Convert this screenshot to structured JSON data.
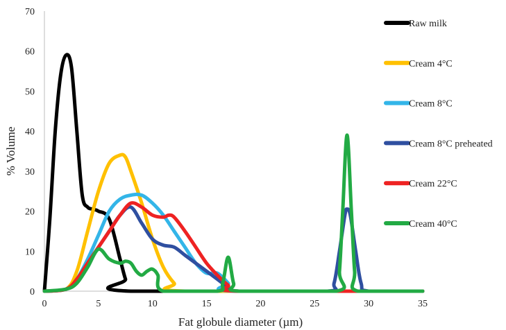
{
  "chart_data": {
    "type": "line",
    "title": "",
    "xlabel": "Fat globule diameter (µm)",
    "ylabel": "% Volume",
    "xlim": [
      0,
      35
    ],
    "ylim": [
      0,
      70
    ],
    "xticks": [
      0,
      5,
      10,
      15,
      20,
      25,
      30,
      35
    ],
    "yticks": [
      0,
      10,
      20,
      30,
      40,
      50,
      60,
      70
    ],
    "grid": false,
    "legend_position": "right",
    "series": [
      {
        "name": "Raw milk",
        "color": "#000000",
        "points": [
          [
            0,
            0
          ],
          [
            0.5,
            18
          ],
          [
            1,
            40
          ],
          [
            1.5,
            54
          ],
          [
            2,
            59
          ],
          [
            2.5,
            56
          ],
          [
            3,
            40
          ],
          [
            3.5,
            24
          ],
          [
            4,
            21
          ],
          [
            4.5,
            20.5
          ],
          [
            5,
            20
          ],
          [
            6,
            18
          ],
          [
            7,
            8
          ],
          [
            7.5,
            3
          ],
          [
            8,
            0
          ],
          [
            35,
            0
          ]
        ]
      },
      {
        "name": "Cream 4°C",
        "color": "#ffc000",
        "points": [
          [
            0,
            0
          ],
          [
            2,
            0.5
          ],
          [
            3,
            5
          ],
          [
            4,
            15
          ],
          [
            5,
            25
          ],
          [
            6,
            32
          ],
          [
            7,
            34
          ],
          [
            7.5,
            33.5
          ],
          [
            8,
            30
          ],
          [
            9,
            22
          ],
          [
            10,
            13
          ],
          [
            11,
            6
          ],
          [
            12,
            2
          ],
          [
            13,
            0
          ],
          [
            35,
            0
          ]
        ]
      },
      {
        "name": "Cream 8°C",
        "color": "#33b5e8",
        "points": [
          [
            0,
            0
          ],
          [
            2,
            0.5
          ],
          [
            3,
            3
          ],
          [
            4,
            8
          ],
          [
            5,
            14
          ],
          [
            6,
            20
          ],
          [
            7,
            23
          ],
          [
            8,
            24
          ],
          [
            9,
            24
          ],
          [
            10,
            22
          ],
          [
            11,
            19
          ],
          [
            12,
            15
          ],
          [
            13,
            11
          ],
          [
            14,
            7
          ],
          [
            15,
            4.5
          ],
          [
            16,
            4.5
          ],
          [
            17,
            2
          ],
          [
            17.5,
            0
          ],
          [
            35,
            0
          ]
        ]
      },
      {
        "name": "Cream 8°C preheated",
        "color": "#2f4fa0",
        "points": [
          [
            0,
            0
          ],
          [
            2,
            0.5
          ],
          [
            3,
            3
          ],
          [
            4,
            7
          ],
          [
            5,
            11
          ],
          [
            6,
            15
          ],
          [
            7,
            19
          ],
          [
            8,
            21
          ],
          [
            9,
            17
          ],
          [
            10,
            13
          ],
          [
            11,
            11.5
          ],
          [
            12,
            11
          ],
          [
            13,
            9
          ],
          [
            14,
            7
          ],
          [
            15,
            5
          ],
          [
            16,
            3
          ],
          [
            17,
            1
          ],
          [
            18,
            0
          ],
          [
            26.2,
            0
          ],
          [
            26.8,
            2
          ],
          [
            27.3,
            10
          ],
          [
            27.8,
            19
          ],
          [
            28,
            20.5
          ],
          [
            28.3,
            19
          ],
          [
            28.8,
            10
          ],
          [
            29.3,
            2
          ],
          [
            30,
            0
          ],
          [
            35,
            0
          ]
        ]
      },
      {
        "name": "Cream 22°C",
        "color": "#ee2222",
        "points": [
          [
            0,
            0
          ],
          [
            2,
            0.5
          ],
          [
            3,
            3
          ],
          [
            4,
            7
          ],
          [
            5,
            11
          ],
          [
            6,
            15
          ],
          [
            7,
            19
          ],
          [
            8,
            22
          ],
          [
            9,
            21
          ],
          [
            10,
            19
          ],
          [
            11,
            18.5
          ],
          [
            11.5,
            19
          ],
          [
            12,
            18.5
          ],
          [
            13,
            15
          ],
          [
            14,
            11
          ],
          [
            15,
            7
          ],
          [
            16,
            4
          ],
          [
            17,
            1.5
          ],
          [
            18,
            0
          ],
          [
            35,
            0
          ]
        ]
      },
      {
        "name": "Cream 40°C",
        "color": "#22aa44",
        "points": [
          [
            0,
            0
          ],
          [
            2,
            0.5
          ],
          [
            3,
            2
          ],
          [
            4,
            6
          ],
          [
            5,
            10.5
          ],
          [
            6,
            8
          ],
          [
            7,
            7
          ],
          [
            7.5,
            7.5
          ],
          [
            8,
            7
          ],
          [
            8.5,
            5
          ],
          [
            9,
            4
          ],
          [
            9.5,
            5
          ],
          [
            10,
            5.5
          ],
          [
            10.5,
            4
          ],
          [
            11,
            0
          ],
          [
            16,
            0
          ],
          [
            16.5,
            2
          ],
          [
            17,
            8.5
          ],
          [
            17.5,
            2
          ],
          [
            18,
            0
          ],
          [
            27,
            0
          ],
          [
            27.3,
            5
          ],
          [
            27.6,
            20
          ],
          [
            28,
            39
          ],
          [
            28.4,
            20
          ],
          [
            28.7,
            5
          ],
          [
            29,
            0
          ],
          [
            35,
            0
          ]
        ]
      }
    ]
  }
}
